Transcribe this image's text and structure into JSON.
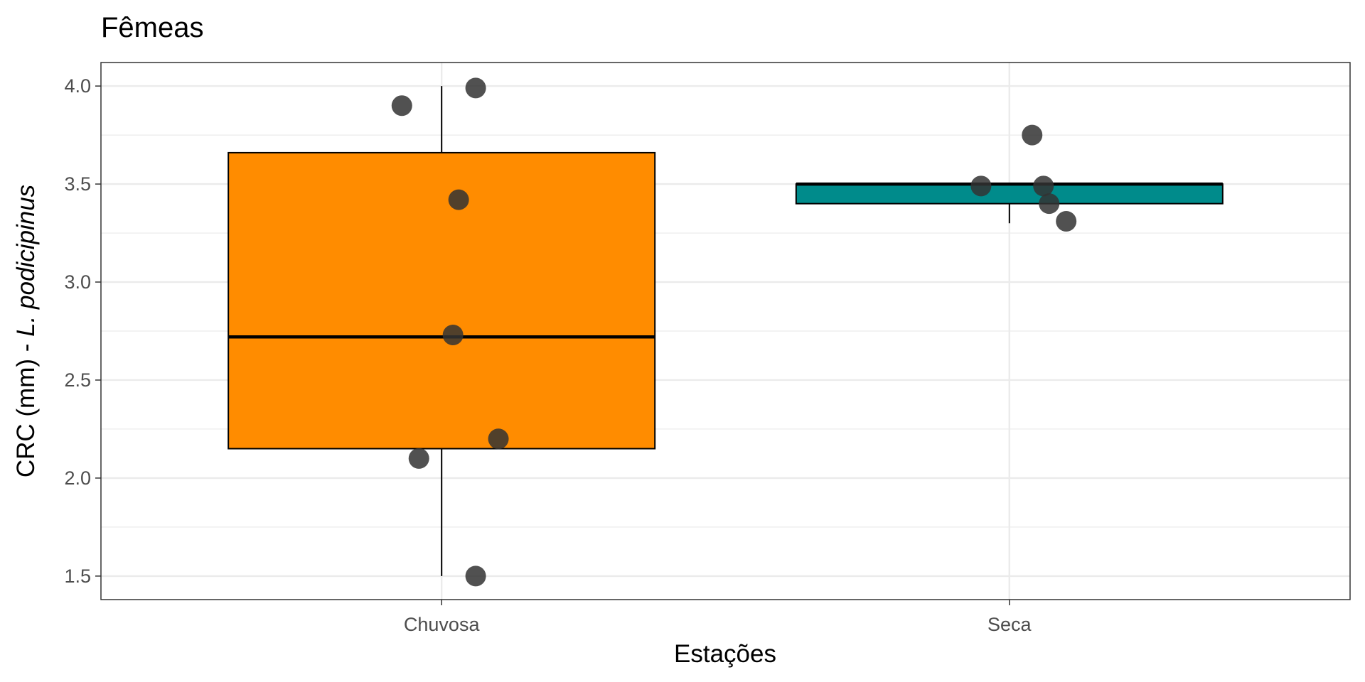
{
  "chart_data": {
    "type": "box",
    "title": "Fêmeas",
    "xlabel": "Estações",
    "ylabel_parts": [
      "CRC (mm) - ",
      "L. podicipinus"
    ],
    "categories": [
      "Chuvosa",
      "Seca"
    ],
    "ylim": [
      1.38,
      4.12
    ],
    "yticks": [
      1.5,
      2.0,
      2.5,
      3.0,
      3.5,
      4.0
    ],
    "ytick_labels": [
      "1.5",
      "2.0",
      "2.5",
      "3.0",
      "3.5",
      "4.0"
    ],
    "grid": true,
    "boxes": [
      {
        "category": "Chuvosa",
        "whisker_low": 1.5,
        "q1": 2.15,
        "median": 2.72,
        "q3": 3.66,
        "whisker_high": 4.0,
        "fill": "#ff8c00"
      },
      {
        "category": "Seca",
        "whisker_low": 3.3,
        "q1": 3.4,
        "median": 3.5,
        "q3": 3.5,
        "whisker_high": 3.5,
        "fill": "#008b8b"
      }
    ],
    "points": [
      {
        "category": "Chuvosa",
        "jitter": -0.07,
        "y": 3.9
      },
      {
        "category": "Chuvosa",
        "jitter": 0.06,
        "y": 3.99
      },
      {
        "category": "Chuvosa",
        "jitter": 0.03,
        "y": 3.42
      },
      {
        "category": "Chuvosa",
        "jitter": 0.02,
        "y": 2.73
      },
      {
        "category": "Chuvosa",
        "jitter": 0.1,
        "y": 2.2
      },
      {
        "category": "Chuvosa",
        "jitter": -0.04,
        "y": 2.1
      },
      {
        "category": "Chuvosa",
        "jitter": 0.06,
        "y": 1.5
      },
      {
        "category": "Seca",
        "jitter": 0.04,
        "y": 3.75
      },
      {
        "category": "Seca",
        "jitter": -0.05,
        "y": 3.49
      },
      {
        "category": "Seca",
        "jitter": 0.06,
        "y": 3.49
      },
      {
        "category": "Seca",
        "jitter": 0.07,
        "y": 3.4
      },
      {
        "category": "Seca",
        "jitter": 0.1,
        "y": 3.31
      }
    ],
    "point_color": "#333333"
  }
}
